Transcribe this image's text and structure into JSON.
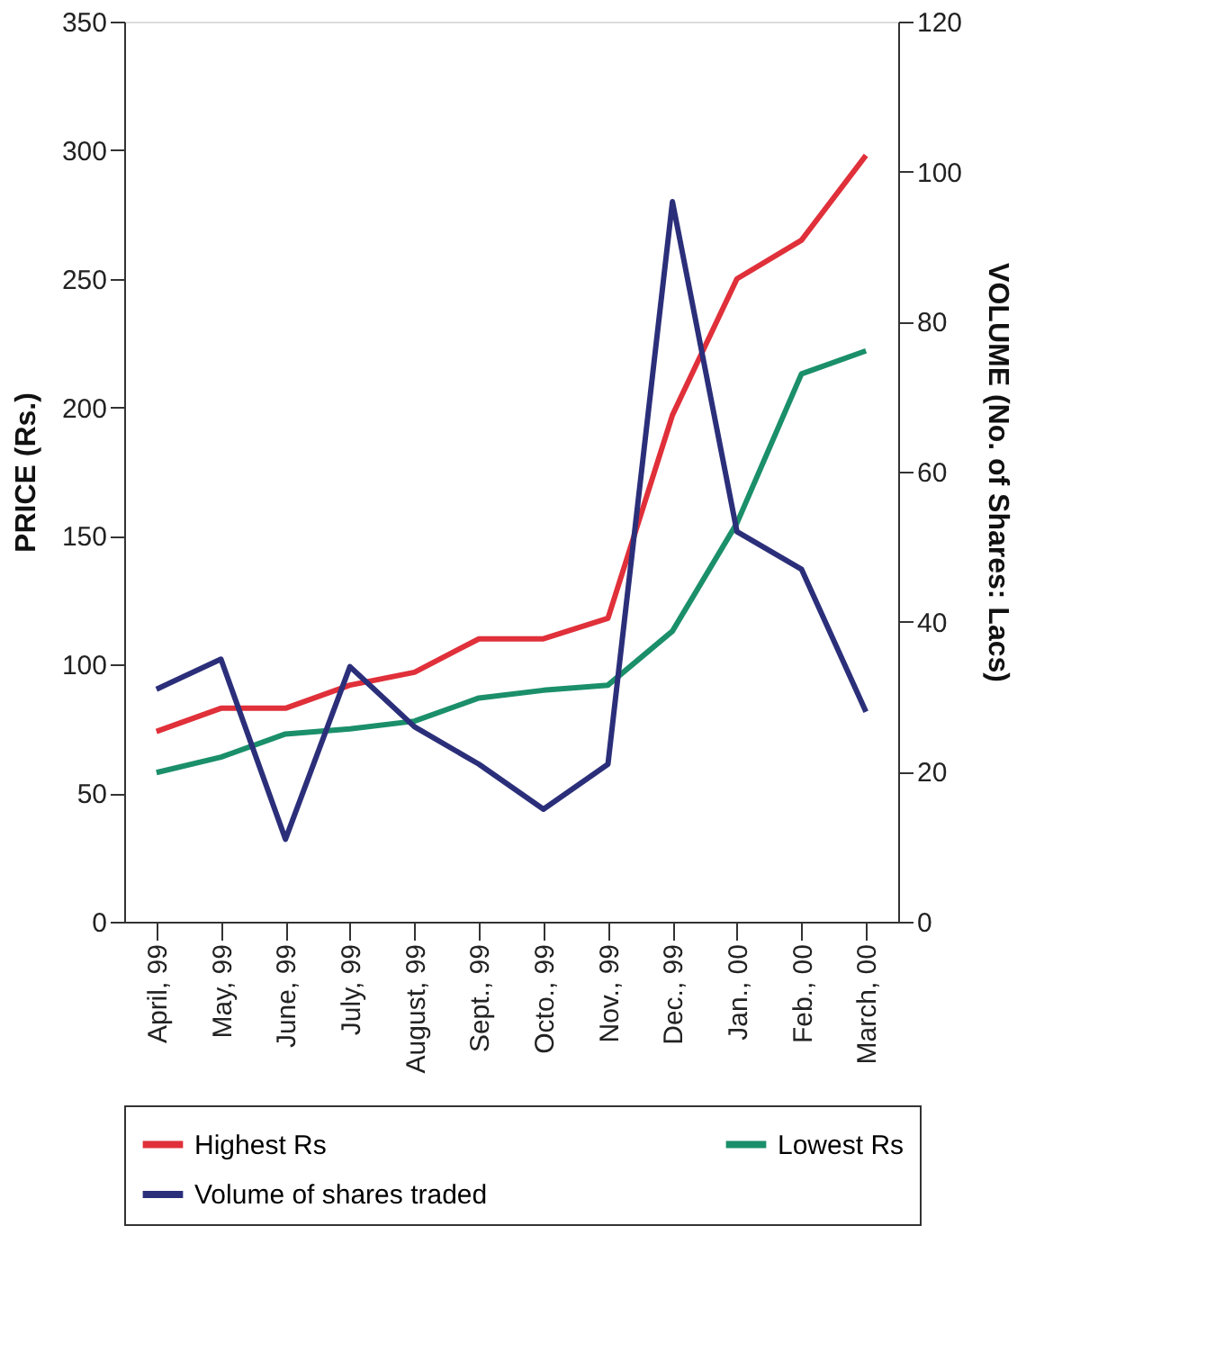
{
  "chart_data": {
    "type": "line",
    "categories": [
      "April, 99",
      "May, 99",
      "June, 99",
      "July, 99",
      "August, 99",
      "Sept., 99",
      "Octo., 99",
      "Nov., 99",
      "Dec., 99",
      "Jan., 00",
      "Feb., 00",
      "March, 00"
    ],
    "series": [
      {
        "name": "Highest Rs",
        "color": "#e0303a",
        "values": [
          74,
          83,
          83,
          92,
          97,
          110,
          110,
          118,
          197,
          250,
          265,
          298
        ]
      },
      {
        "name": "Lowest Rs",
        "color": "#1a8f6a",
        "values": [
          58,
          64,
          73,
          75,
          78,
          87,
          90,
          92,
          113,
          155,
          213,
          222
        ]
      },
      {
        "name": "Volume of shares  traded",
        "color": "#2b2f7a",
        "axis": "y2",
        "values": [
          31,
          35,
          11,
          34,
          26,
          21,
          15,
          21,
          96,
          52,
          47,
          28
        ]
      }
    ],
    "ylabel": "PRICE (Rs.)",
    "y2label": "VOLUME (No. of Shares: Lacs)",
    "ylim": [
      0,
      350
    ],
    "yticks": [
      0,
      50,
      100,
      150,
      200,
      250,
      300,
      350
    ],
    "y2lim": [
      0,
      120
    ],
    "y2ticks": [
      0,
      20,
      40,
      60,
      80,
      100,
      120
    ],
    "grid": false,
    "legend": "bottom",
    "marker": "none",
    "line_style": "solid"
  }
}
